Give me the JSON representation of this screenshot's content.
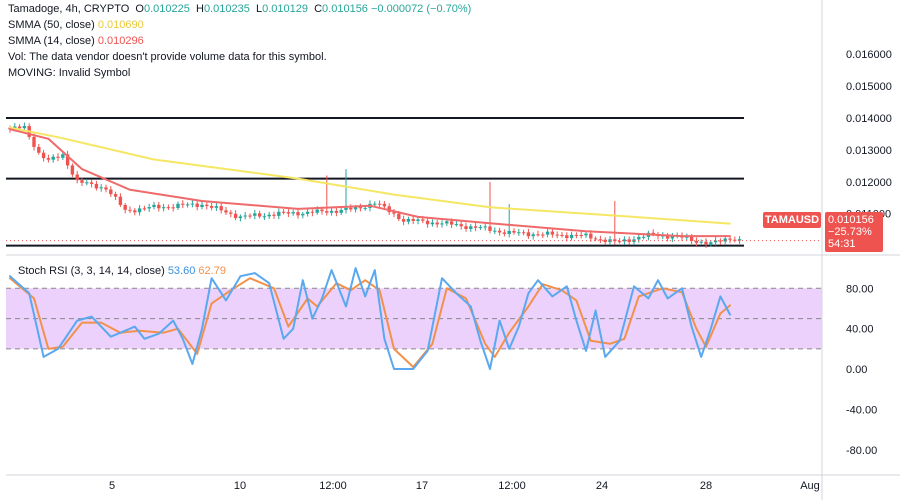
{
  "header": {
    "symbol": "Tamadoge, 4h, CRYPTO",
    "ohlc": {
      "o_label": "O",
      "o": "0.010225",
      "h_label": "H",
      "h": "0.010235",
      "l_label": "L",
      "l": "0.010129",
      "c_label": "C",
      "c": "0.010156",
      "change": "−0.000072 (−0.70%)"
    },
    "sma50_label": "SMMA (50, close)",
    "sma50_value": "0.010690",
    "sma14_label": "SMMA (14, close)",
    "sma14_value": "0.010296",
    "vol_text": "Vol: The data vendor doesn't provide volume data for this symbol.",
    "moving_text": "MOVING: Invalid Symbol"
  },
  "price_tag": {
    "symbol": "TAMAUSD",
    "price": "0.010156",
    "change_pct": "−25.73%",
    "countdown": "54:31"
  },
  "stoch_legend": {
    "label": "Stoch RSI (3, 3, 14, 14, close)",
    "k_value": "53.60",
    "d_value": "62.79"
  },
  "colors": {
    "up": "#26a69a",
    "down": "#ef5350",
    "smma50": "#f5e663",
    "smma14": "#ef6a6a",
    "k_line": "#5aa8f0",
    "d_line": "#f2914a",
    "rsi_band": "#e8c9fb",
    "level_line": "#131722"
  },
  "chart_data": [
    {
      "type": "candlestick",
      "title": "Tamadoge, 4h, CRYPTO",
      "y_axis_ticks": [
        "0.016000",
        "0.015000",
        "0.014000",
        "0.013000",
        "0.012000",
        "0.011000"
      ],
      "ylim": [
        0.0098,
        0.0177
      ],
      "x_axis_ticks": [
        "5",
        "10",
        "12:00",
        "17",
        "12:00",
        "24",
        "28",
        "Aug"
      ],
      "horizontal_levels": [
        0.014,
        0.0121,
        0.01
      ],
      "anchors": [
        {
          "i": 0,
          "c": 0.01365
        },
        {
          "i": 3,
          "c": 0.0137
        },
        {
          "i": 6,
          "c": 0.0129
        },
        {
          "i": 8,
          "c": 0.01265
        },
        {
          "i": 11,
          "c": 0.01285
        },
        {
          "i": 14,
          "c": 0.012
        },
        {
          "i": 20,
          "c": 0.0118
        },
        {
          "i": 24,
          "c": 0.0111
        },
        {
          "i": 30,
          "c": 0.0112
        },
        {
          "i": 40,
          "c": 0.0113
        },
        {
          "i": 48,
          "c": 0.0109
        },
        {
          "i": 56,
          "c": 0.011
        },
        {
          "i": 64,
          "c": 0.01105
        },
        {
          "i": 72,
          "c": 0.01115
        },
        {
          "i": 76,
          "c": 0.01135
        },
        {
          "i": 82,
          "c": 0.0108
        },
        {
          "i": 90,
          "c": 0.0107
        },
        {
          "i": 98,
          "c": 0.01055
        },
        {
          "i": 104,
          "c": 0.0104
        },
        {
          "i": 112,
          "c": 0.01035
        },
        {
          "i": 120,
          "c": 0.0103
        },
        {
          "i": 126,
          "c": 0.0101
        },
        {
          "i": 134,
          "c": 0.01035
        },
        {
          "i": 140,
          "c": 0.01025
        },
        {
          "i": 146,
          "c": 0.01005
        },
        {
          "i": 150,
          "c": 0.01025
        },
        {
          "i": 152,
          "c": 0.01016
        }
      ],
      "wick_spikes": [
        {
          "i": 66,
          "high": 0.0122
        },
        {
          "i": 70,
          "high": 0.0124
        },
        {
          "i": 100,
          "high": 0.012
        },
        {
          "i": 104,
          "high": 0.0113
        },
        {
          "i": 126,
          "high": 0.0114
        }
      ],
      "smma50": [
        {
          "i": 0,
          "v": 0.0137
        },
        {
          "i": 10,
          "v": 0.0134
        },
        {
          "i": 30,
          "v": 0.0127
        },
        {
          "i": 60,
          "v": 0.0121
        },
        {
          "i": 80,
          "v": 0.0116
        },
        {
          "i": 100,
          "v": 0.0112
        },
        {
          "i": 130,
          "v": 0.0109
        },
        {
          "i": 150,
          "v": 0.01069
        }
      ],
      "smma14": [
        {
          "i": 0,
          "v": 0.01365
        },
        {
          "i": 8,
          "v": 0.01335
        },
        {
          "i": 15,
          "v": 0.0124
        },
        {
          "i": 25,
          "v": 0.01175
        },
        {
          "i": 40,
          "v": 0.0114
        },
        {
          "i": 60,
          "v": 0.01115
        },
        {
          "i": 75,
          "v": 0.01125
        },
        {
          "i": 85,
          "v": 0.0109
        },
        {
          "i": 100,
          "v": 0.0107
        },
        {
          "i": 120,
          "v": 0.01045
        },
        {
          "i": 140,
          "v": 0.0103
        },
        {
          "i": 150,
          "v": 0.0103
        }
      ]
    },
    {
      "type": "line",
      "title": "Stoch RSI (3, 3, 14, 14, close)",
      "y_axis_ticks": [
        "80.00",
        "40.00",
        "0.00",
        "-40.00",
        "-80.00"
      ],
      "ylim": [
        -100,
        110
      ],
      "bands": [
        20,
        50,
        80
      ],
      "series": [
        {
          "name": "K",
          "points": [
            {
              "i": 0,
              "v": 92
            },
            {
              "i": 4,
              "v": 75
            },
            {
              "i": 7,
              "v": 12
            },
            {
              "i": 10,
              "v": 20
            },
            {
              "i": 14,
              "v": 48
            },
            {
              "i": 17,
              "v": 52
            },
            {
              "i": 21,
              "v": 32
            },
            {
              "i": 24,
              "v": 38
            },
            {
              "i": 26,
              "v": 42
            },
            {
              "i": 28,
              "v": 30
            },
            {
              "i": 31,
              "v": 35
            },
            {
              "i": 34,
              "v": 48
            },
            {
              "i": 36,
              "v": 30
            },
            {
              "i": 38,
              "v": 5
            },
            {
              "i": 40,
              "v": 40
            },
            {
              "i": 42,
              "v": 90
            },
            {
              "i": 45,
              "v": 68
            },
            {
              "i": 48,
              "v": 92
            },
            {
              "i": 51,
              "v": 95
            },
            {
              "i": 54,
              "v": 85
            },
            {
              "i": 57,
              "v": 30
            },
            {
              "i": 59,
              "v": 40
            },
            {
              "i": 61,
              "v": 88
            },
            {
              "i": 63,
              "v": 50
            },
            {
              "i": 65,
              "v": 70
            },
            {
              "i": 67,
              "v": 98
            },
            {
              "i": 70,
              "v": 62
            },
            {
              "i": 72,
              "v": 100
            },
            {
              "i": 74,
              "v": 72
            },
            {
              "i": 76,
              "v": 98
            },
            {
              "i": 78,
              "v": 30
            },
            {
              "i": 80,
              "v": 0
            },
            {
              "i": 84,
              "v": 0
            },
            {
              "i": 87,
              "v": 18
            },
            {
              "i": 90,
              "v": 90
            },
            {
              "i": 93,
              "v": 75
            },
            {
              "i": 96,
              "v": 62
            },
            {
              "i": 98,
              "v": 28
            },
            {
              "i": 100,
              "v": 0
            },
            {
              "i": 102,
              "v": 48
            },
            {
              "i": 104,
              "v": 20
            },
            {
              "i": 106,
              "v": 42
            },
            {
              "i": 108,
              "v": 75
            },
            {
              "i": 110,
              "v": 88
            },
            {
              "i": 113,
              "v": 72
            },
            {
              "i": 116,
              "v": 82
            },
            {
              "i": 118,
              "v": 48
            },
            {
              "i": 120,
              "v": 18
            },
            {
              "i": 122,
              "v": 58
            },
            {
              "i": 124,
              "v": 12
            },
            {
              "i": 127,
              "v": 28
            },
            {
              "i": 130,
              "v": 82
            },
            {
              "i": 133,
              "v": 70
            },
            {
              "i": 135,
              "v": 88
            },
            {
              "i": 137,
              "v": 70
            },
            {
              "i": 140,
              "v": 80
            },
            {
              "i": 142,
              "v": 42
            },
            {
              "i": 144,
              "v": 12
            },
            {
              "i": 146,
              "v": 40
            },
            {
              "i": 148,
              "v": 72
            },
            {
              "i": 150,
              "v": 54
            }
          ]
        },
        {
          "name": "D",
          "points": [
            {
              "i": 0,
              "v": 90
            },
            {
              "i": 5,
              "v": 70
            },
            {
              "i": 8,
              "v": 20
            },
            {
              "i": 11,
              "v": 22
            },
            {
              "i": 15,
              "v": 46
            },
            {
              "i": 19,
              "v": 46
            },
            {
              "i": 23,
              "v": 36
            },
            {
              "i": 27,
              "v": 38
            },
            {
              "i": 32,
              "v": 36
            },
            {
              "i": 35,
              "v": 40
            },
            {
              "i": 39,
              "v": 15
            },
            {
              "i": 42,
              "v": 65
            },
            {
              "i": 46,
              "v": 78
            },
            {
              "i": 50,
              "v": 90
            },
            {
              "i": 55,
              "v": 80
            },
            {
              "i": 58,
              "v": 42
            },
            {
              "i": 62,
              "v": 70
            },
            {
              "i": 64,
              "v": 62
            },
            {
              "i": 68,
              "v": 85
            },
            {
              "i": 71,
              "v": 78
            },
            {
              "i": 74,
              "v": 88
            },
            {
              "i": 77,
              "v": 78
            },
            {
              "i": 80,
              "v": 20
            },
            {
              "i": 84,
              "v": 2
            },
            {
              "i": 88,
              "v": 25
            },
            {
              "i": 91,
              "v": 80
            },
            {
              "i": 95,
              "v": 70
            },
            {
              "i": 99,
              "v": 25
            },
            {
              "i": 101,
              "v": 12
            },
            {
              "i": 104,
              "v": 36
            },
            {
              "i": 108,
              "v": 62
            },
            {
              "i": 111,
              "v": 84
            },
            {
              "i": 115,
              "v": 78
            },
            {
              "i": 118,
              "v": 68
            },
            {
              "i": 121,
              "v": 28
            },
            {
              "i": 125,
              "v": 25
            },
            {
              "i": 128,
              "v": 30
            },
            {
              "i": 131,
              "v": 72
            },
            {
              "i": 136,
              "v": 80
            },
            {
              "i": 140,
              "v": 76
            },
            {
              "i": 143,
              "v": 40
            },
            {
              "i": 145,
              "v": 22
            },
            {
              "i": 148,
              "v": 55
            },
            {
              "i": 150,
              "v": 63
            }
          ]
        }
      ]
    }
  ]
}
